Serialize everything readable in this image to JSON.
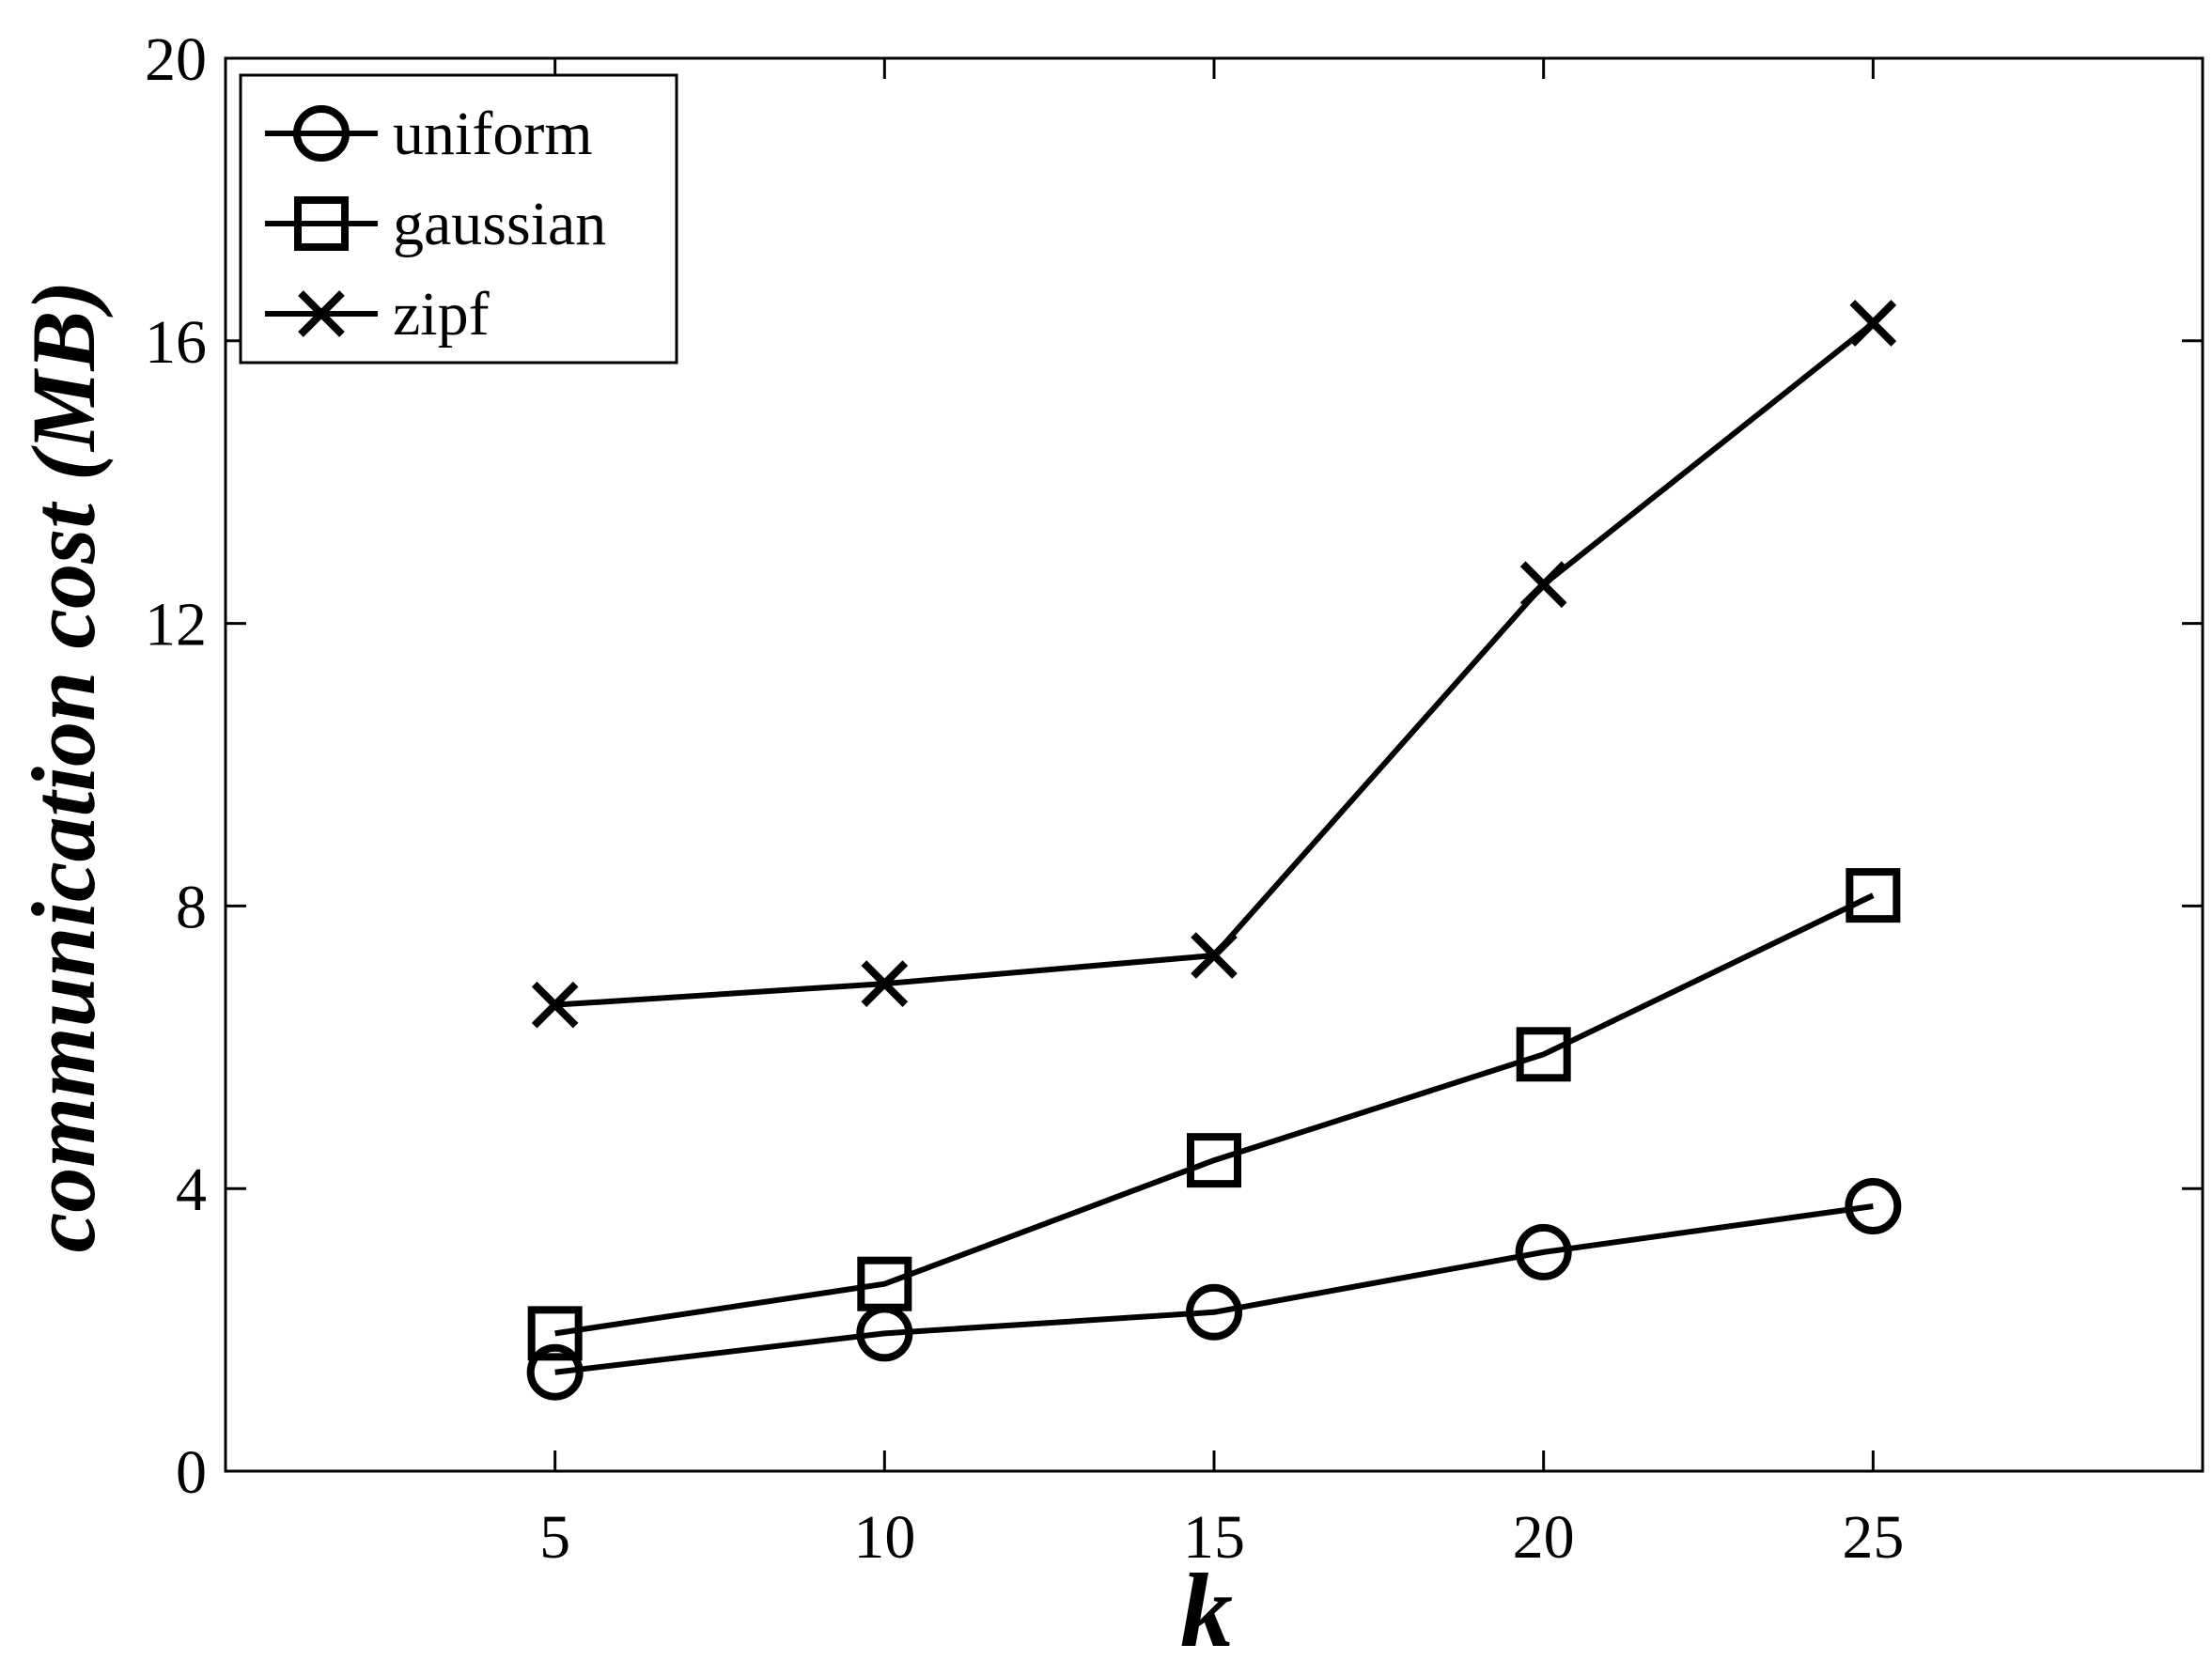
{
  "chart_data": {
    "type": "line",
    "xlabel": "k",
    "ylabel": "communication cost (MB)",
    "xlim": [
      0,
      30
    ],
    "ylim": [
      0,
      20
    ],
    "x": [
      5,
      10,
      15,
      20,
      25
    ],
    "x_ticks": [
      "5",
      "10",
      "15",
      "20",
      "25"
    ],
    "y_ticks": [
      "0",
      "4",
      "8",
      "12",
      "16",
      "20"
    ],
    "series": [
      {
        "name": "uniform",
        "marker": "circle",
        "values": [
          1.4,
          1.95,
          2.25,
          3.1,
          3.75
        ]
      },
      {
        "name": "gaussian",
        "marker": "square",
        "values": [
          1.95,
          2.65,
          4.4,
          5.9,
          8.15
        ]
      },
      {
        "name": "zipf",
        "marker": "x",
        "values": [
          6.6,
          6.9,
          7.3,
          12.55,
          16.25
        ]
      }
    ],
    "legend_position": "top-left",
    "grid": false,
    "colors": {
      "line": "#000000",
      "background": "#ffffff"
    }
  }
}
